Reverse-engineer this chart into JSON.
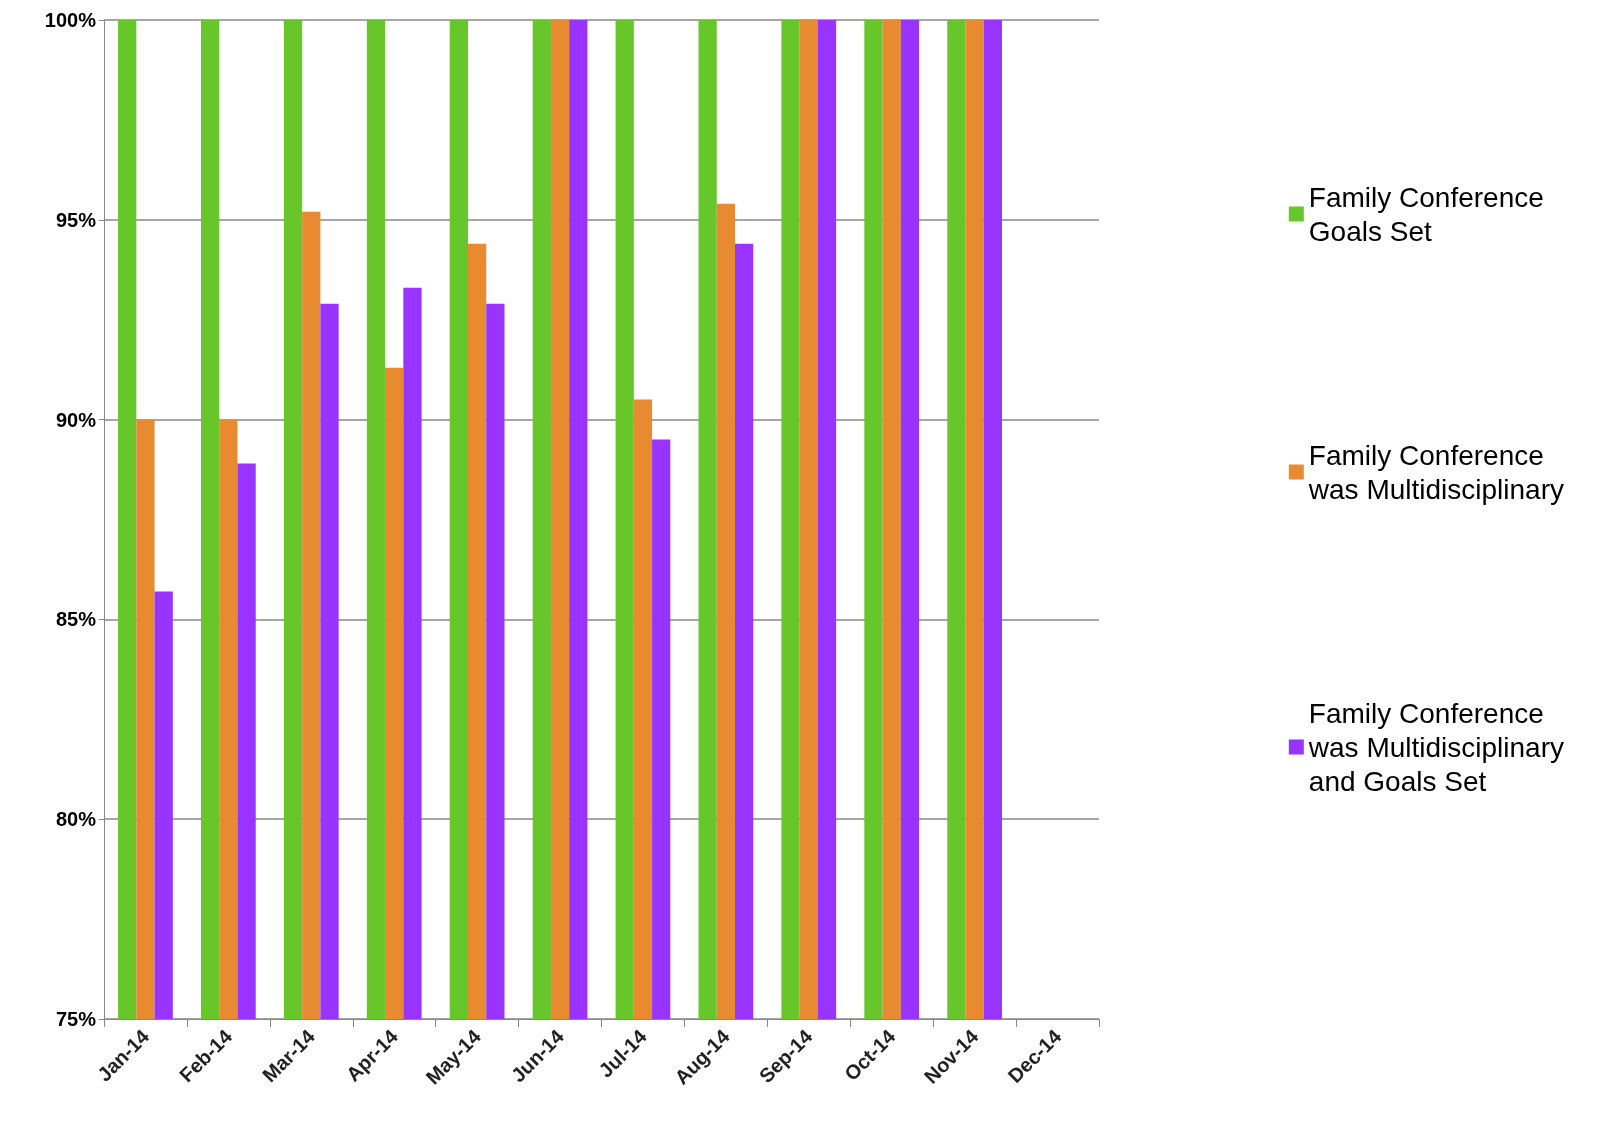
{
  "chart_data": {
    "type": "bar",
    "categories": [
      "Jan-14",
      "Feb-14",
      "Mar-14",
      "Apr-14",
      "May-14",
      "Jun-14",
      "Jul-14",
      "Aug-14",
      "Sep-14",
      "Oct-14",
      "Nov-14",
      "Dec-14"
    ],
    "series": [
      {
        "name": "Family Conference\nGoals Set",
        "color": "#66c62a",
        "values": [
          100,
          100,
          100,
          100,
          100,
          100,
          100,
          100,
          100,
          100,
          100,
          null
        ]
      },
      {
        "name": "Family Conference\nwas Multidisciplinary",
        "color": "#e88a30",
        "values": [
          90,
          90,
          95.2,
          91.3,
          94.4,
          100,
          90.5,
          95.4,
          100,
          100,
          100,
          null
        ]
      },
      {
        "name": "Family Conference\nwas Multidisciplinary\nand Goals Set",
        "color": "#9933ff",
        "values": [
          85.7,
          88.9,
          92.9,
          93.3,
          92.9,
          100,
          89.5,
          94.4,
          100,
          100,
          100,
          null
        ]
      }
    ],
    "ylim": [
      75,
      100
    ],
    "yticks": [
      {
        "value": 75,
        "label": "75%"
      },
      {
        "value": 80,
        "label": "80%"
      },
      {
        "value": 85,
        "label": "85%"
      },
      {
        "value": 90,
        "label": "90%"
      },
      {
        "value": 95,
        "label": "95%"
      },
      {
        "value": 100,
        "label": "100%"
      }
    ],
    "grid": "y",
    "legend": "right"
  }
}
